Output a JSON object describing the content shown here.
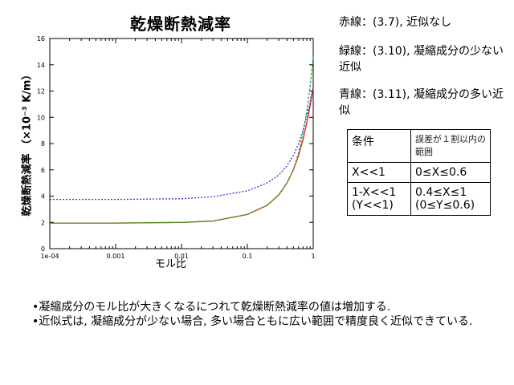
{
  "title": "乾燥断熱減率",
  "legend": {
    "red": "赤線：(3.7), 近似なし",
    "green": "緑線：(3.10), 凝縮成分の少ない近似",
    "blue": "青線：(3.11), 凝縮成分の多い近似"
  },
  "table": {
    "header": [
      "条件",
      "誤差が１割以内の範囲"
    ],
    "rows": [
      [
        "X<<1",
        "0≤X≤0.6"
      ],
      [
        "1-X<<1 (Y<<1)",
        "0.4≤X≤1 (0≤Y≤0.6)"
      ]
    ]
  },
  "notes": [
    "•凝縮成分のモル比が大きくなるにつれて乾燥断熱減率の値は増加する.",
    "•近似式は, 凝縮成分が少ない場合, 多い場合ともに広い範囲で精度良く近似できている."
  ],
  "chart_data": {
    "type": "line",
    "xlabel": "モル比",
    "ylabel": "乾燥断熱減率 （×10⁻³ K/m）",
    "xscale": "log",
    "xlim": [
      0.0001,
      1
    ],
    "ylim": [
      0,
      16
    ],
    "xticks": [
      0.0001,
      0.001,
      0.01,
      0.1,
      1
    ],
    "xtick_labels": [
      "1e-04",
      "0.001",
      "0.01",
      "0.1",
      "1"
    ],
    "yticks": [
      0,
      2,
      4,
      6,
      8,
      10,
      12,
      14,
      16
    ],
    "grid": false,
    "series": [
      {
        "color": "#e02020",
        "dash": "",
        "x": [
          0.0001,
          0.001,
          0.01,
          0.03,
          0.1,
          0.2,
          0.3,
          0.4,
          0.5,
          0.6,
          0.7,
          0.8,
          0.9,
          1.0
        ],
        "y": [
          1.95,
          1.95,
          2.0,
          2.1,
          2.6,
          3.3,
          4.1,
          5.0,
          6.0,
          7.1,
          8.3,
          9.6,
          10.9,
          12.3
        ]
      },
      {
        "color": "#20b020",
        "dash": "3,2",
        "x": [
          0.0001,
          0.001,
          0.01,
          0.03,
          0.1,
          0.2,
          0.3,
          0.4,
          0.5,
          0.6,
          0.7,
          0.8,
          0.9,
          1.0
        ],
        "y": [
          1.95,
          1.95,
          2.0,
          2.1,
          2.6,
          3.3,
          4.1,
          5.0,
          6.0,
          7.3,
          8.8,
          10.5,
          12.4,
          14.6
        ]
      },
      {
        "color": "#3030e0",
        "dash": "2,2",
        "x": [
          0.0001,
          0.001,
          0.01,
          0.03,
          0.1,
          0.2,
          0.3,
          0.4,
          0.5,
          0.6,
          0.7,
          0.8,
          0.9,
          1.0
        ],
        "y": [
          3.75,
          3.75,
          3.8,
          3.95,
          4.4,
          5.0,
          5.6,
          6.3,
          7.1,
          8.0,
          9.0,
          10.1,
          11.2,
          12.4
        ]
      }
    ]
  }
}
